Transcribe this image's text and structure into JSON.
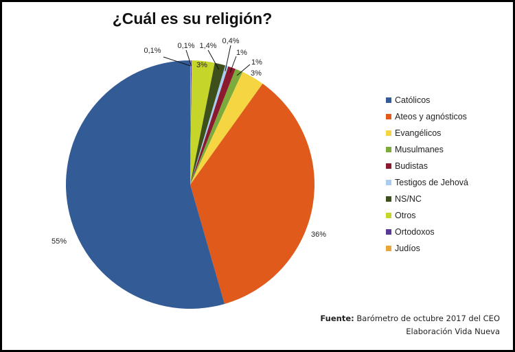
{
  "chart_data": {
    "type": "pie",
    "title": "¿Cuál es su religión?",
    "categories": [
      "Católicos",
      "Ateos y agnósticos",
      "Evangélicos",
      "Musulmanes",
      "Budistas",
      "Testigos de Jehová",
      "NS/NC",
      "Otros",
      "Ortodoxos",
      "Judíos"
    ],
    "values": [
      55,
      36,
      3,
      1,
      1,
      0.4,
      1.4,
      3,
      0.1,
      0.1
    ],
    "labels": [
      "55%",
      "36%",
      "3%",
      "1%",
      "1%",
      "0,4%",
      "1,4%",
      "3%",
      "0,1%",
      "0,1%"
    ],
    "colors": [
      "#335b96",
      "#e05a1c",
      "#f5d642",
      "#7aab3c",
      "#8c1a2e",
      "#a9cdf0",
      "#3d4f1a",
      "#c6d52a",
      "#5b3a96",
      "#e8a838"
    ],
    "legend_position": "right",
    "start_angle": "12 o'clock, slices drawn counter-clockwise from Católicos"
  },
  "title": "¿Cuál es su religión?",
  "legend": {
    "items": [
      {
        "label": "Católicos",
        "color": "#335b96"
      },
      {
        "label": "Ateos y agnósticos",
        "color": "#e05a1c"
      },
      {
        "label": "Evangélicos",
        "color": "#f5d642"
      },
      {
        "label": "Musulmanes",
        "color": "#7aab3c"
      },
      {
        "label": "Budistas",
        "color": "#8c1a2e"
      },
      {
        "label": "Testigos de Jehová",
        "color": "#a9cdf0"
      },
      {
        "label": "NS/NC",
        "color": "#3d4f1a"
      },
      {
        "label": "Otros",
        "color": "#c6d52a"
      },
      {
        "label": "Ortodoxos",
        "color": "#5b3a96"
      },
      {
        "label": "Judíos",
        "color": "#e8a838"
      }
    ]
  },
  "source": {
    "prefix": "Fuente:",
    "text": "Barómetro de octubre 2017 del CEO",
    "line2": "Elaboración Vida Nueva"
  }
}
